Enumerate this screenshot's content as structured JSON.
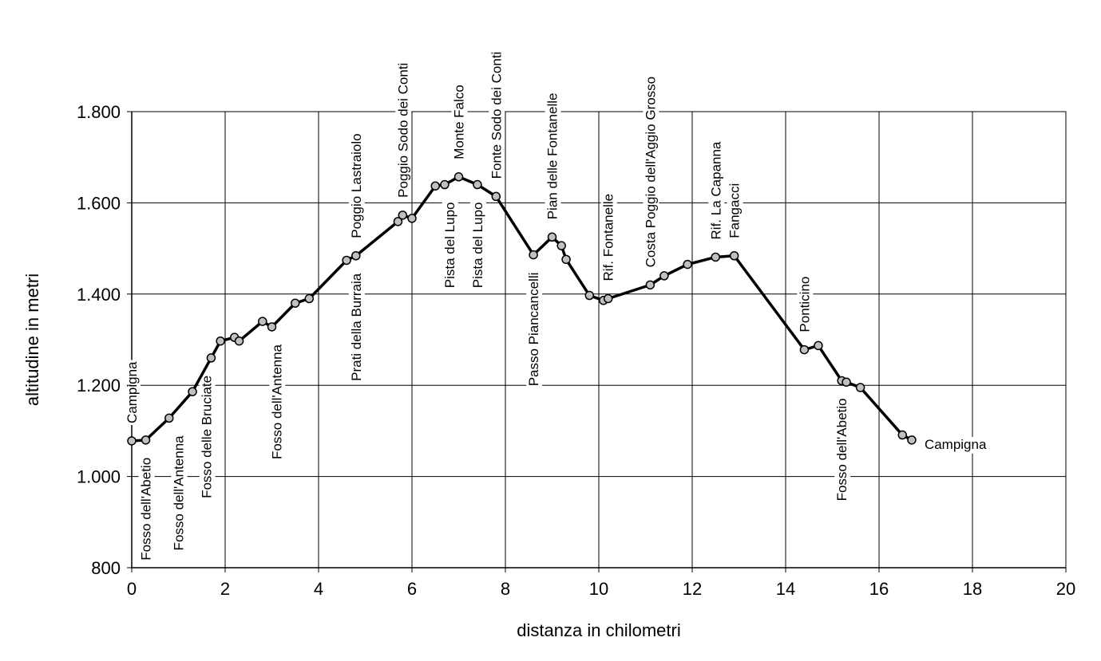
{
  "chart_data": {
    "type": "line",
    "xlabel": "distanza in chilometri",
    "ylabel": "altitudine  in metri",
    "xlim": [
      0,
      20
    ],
    "ylim": [
      800,
      1800
    ],
    "grid": true,
    "x_ticks": [
      "0",
      "2",
      "4",
      "6",
      "8",
      "10",
      "12",
      "14",
      "16",
      "18",
      "20"
    ],
    "y_ticks": [
      "800",
      "1.000",
      "1.200",
      "1.400",
      "1.600",
      "1.800"
    ],
    "line_color": "#000000",
    "marker_color": "#c0c0c0",
    "series": [
      {
        "x": [
          0,
          0.3,
          0.8,
          1.3,
          1.7,
          1.9,
          2.2,
          2.3,
          2.8,
          3.0,
          3.5,
          3.8,
          4.6,
          4.8,
          5.7,
          5.8,
          6.0,
          6.5,
          6.7,
          7.0,
          7.4,
          7.8,
          8.6,
          9.0,
          9.2,
          9.3,
          9.8,
          10.1,
          10.2,
          11.1,
          11.4,
          11.9,
          12.5,
          12.9,
          14.4,
          14.7,
          15.2,
          15.3,
          15.6,
          16.5,
          16.7
        ],
        "y": [
          1078,
          1080,
          1128,
          1186,
          1260,
          1297,
          1305,
          1297,
          1340,
          1328,
          1380,
          1390,
          1474,
          1484,
          1559,
          1573,
          1566,
          1637,
          1640,
          1657,
          1640,
          1614,
          1486,
          1525,
          1506,
          1476,
          1397,
          1386,
          1390,
          1420,
          1440,
          1465,
          1481,
          1484,
          1278,
          1287,
          1210,
          1207,
          1195,
          1091,
          1080
        ]
      }
    ],
    "annotations": [
      {
        "text": "Campigna",
        "x": 0.0,
        "side": "above"
      },
      {
        "text": "Fosso dell'Abetio",
        "x": 0.3,
        "side": "below"
      },
      {
        "text": "Fosso dell'Antenna",
        "x": 1.0,
        "side": "below"
      },
      {
        "text": "Fosso delle Bruciate",
        "x": 1.6,
        "side": "below"
      },
      {
        "text": "Fosso dell'Antenna",
        "x": 3.1,
        "side": "below"
      },
      {
        "text": "Prati della Burraia",
        "x": 4.8,
        "side": "below"
      },
      {
        "text": "Poggio Lastraiolo",
        "x": 4.8,
        "side": "above"
      },
      {
        "text": "Poggio Sodo dei Conti",
        "x": 5.8,
        "side": "above"
      },
      {
        "text": "Pista del Lupo",
        "x": 6.8,
        "side": "below"
      },
      {
        "text": "Monte Falco",
        "x": 7.0,
        "side": "above"
      },
      {
        "text": "Pista del Lupo",
        "x": 7.4,
        "side": "below"
      },
      {
        "text": "Fonte Sodo dei Conti",
        "x": 7.8,
        "side": "above"
      },
      {
        "text": "Passo Piancancelli",
        "x": 8.6,
        "side": "below"
      },
      {
        "text": "Pian delle Fontanelle",
        "x": 9.0,
        "side": "above"
      },
      {
        "text": "Rif. Fontanelle",
        "x": 10.2,
        "side": "above"
      },
      {
        "text": "Costa Poggio dell'Aggio Grosso",
        "x": 11.1,
        "side": "above"
      },
      {
        "text": "Rif. La Capanna",
        "x": 12.5,
        "side": "above"
      },
      {
        "text": "Fangacci",
        "x": 12.9,
        "side": "above"
      },
      {
        "text": "Ponticino",
        "x": 14.4,
        "side": "above"
      },
      {
        "text": "Fosso dell'Abetio",
        "x": 15.2,
        "side": "below"
      },
      {
        "text": "Campigna",
        "x": 16.7,
        "side": "right"
      }
    ]
  }
}
